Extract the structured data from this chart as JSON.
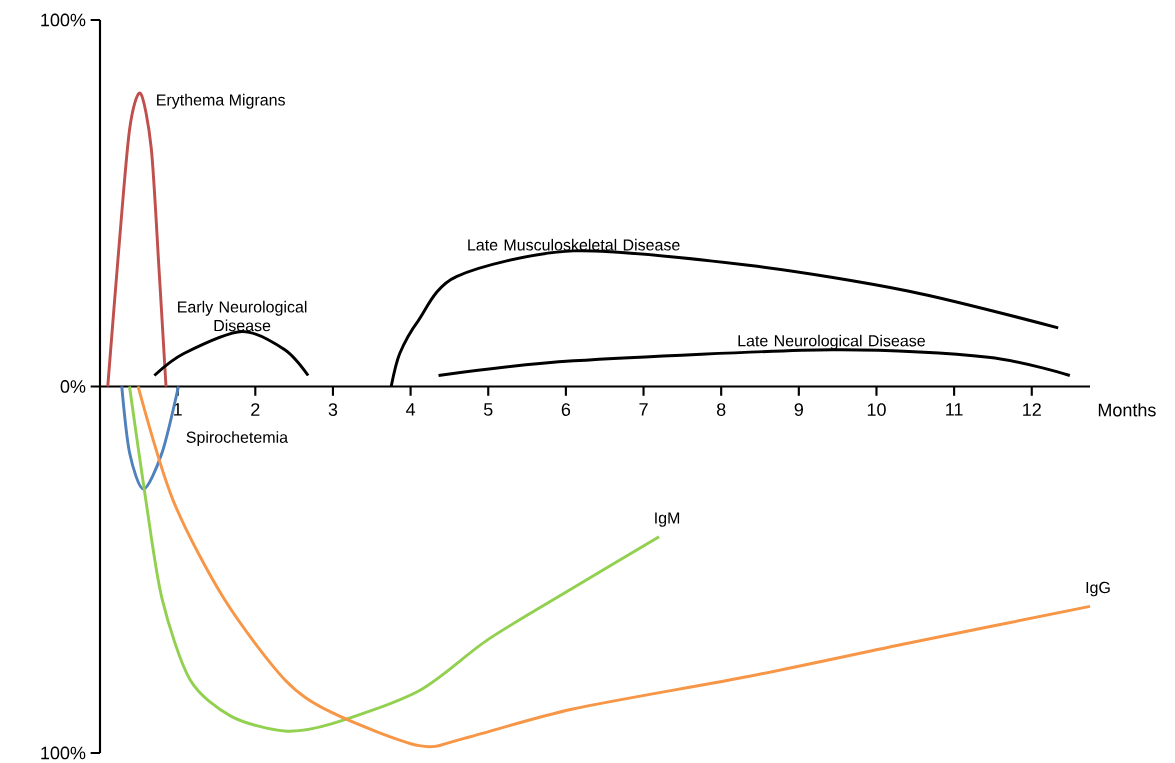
{
  "chart_data": {
    "type": "line",
    "xlabel": "Months",
    "xlim": [
      0,
      12.75
    ],
    "ylim": [
      -100,
      100
    ],
    "xticks": [
      1,
      2,
      3,
      4,
      5,
      6,
      7,
      8,
      9,
      10,
      11,
      12
    ],
    "yticks": [
      {
        "value": -100,
        "label": "100%"
      },
      {
        "value": 0,
        "label": "0%"
      },
      {
        "value": 100,
        "label": "100%"
      }
    ],
    "grid": false,
    "marker": "none",
    "line_style": "solid",
    "series": [
      {
        "name": "Erythema Migrans",
        "color": "#c0504d",
        "x": [
          0.1,
          0.24,
          0.38,
          0.52,
          0.66,
          0.76,
          0.85
        ],
        "values": [
          0,
          37,
          70,
          80,
          65,
          32,
          0
        ]
      },
      {
        "name": "Spirochetemia",
        "color": "#4f81bd",
        "x": [
          0.28,
          0.38,
          0.56,
          0.8,
          1.01
        ],
        "values": [
          0,
          -18,
          -28,
          -18,
          0
        ]
      },
      {
        "name": "Early Neurological Disease",
        "color": "#000000",
        "x": [
          0.7,
          1.08,
          1.83,
          2.38,
          2.68
        ],
        "values": [
          3,
          9,
          15,
          10,
          3
        ]
      },
      {
        "name": "Late Musculoskeletal Disease",
        "color": "#000000",
        "x": [
          3.75,
          3.86,
          4.1,
          4.59,
          6.1,
          8.38,
          10.42,
          12.34
        ],
        "values": [
          0,
          9,
          18,
          30,
          37,
          33,
          26,
          16
        ]
      },
      {
        "name": "Late Neurological Disease",
        "color": "#000000",
        "x": [
          4.36,
          6.1,
          9.42,
          11.44,
          12.49
        ],
        "values": [
          3,
          7,
          10,
          8,
          3
        ]
      },
      {
        "name": "IgM",
        "color": "#92d050",
        "x": [
          0.38,
          0.59,
          0.8,
          1.16,
          1.69,
          2.38,
          2.99,
          4.11,
          5.0,
          6.09,
          7.2
        ],
        "values": [
          0,
          -31,
          -58,
          -80,
          -90,
          -94,
          -92,
          -83,
          -69,
          -55,
          -41
        ]
      },
      {
        "name": "IgG",
        "color": "#f79646",
        "x": [
          0.49,
          0.94,
          1.6,
          2.38,
          2.99,
          4.11,
          4.69,
          6.09,
          8.38,
          10.42,
          12.75
        ],
        "values": [
          0,
          -31,
          -58,
          -80,
          -89,
          -98,
          -96,
          -88,
          -79,
          -70,
          -60
        ]
      }
    ]
  }
}
